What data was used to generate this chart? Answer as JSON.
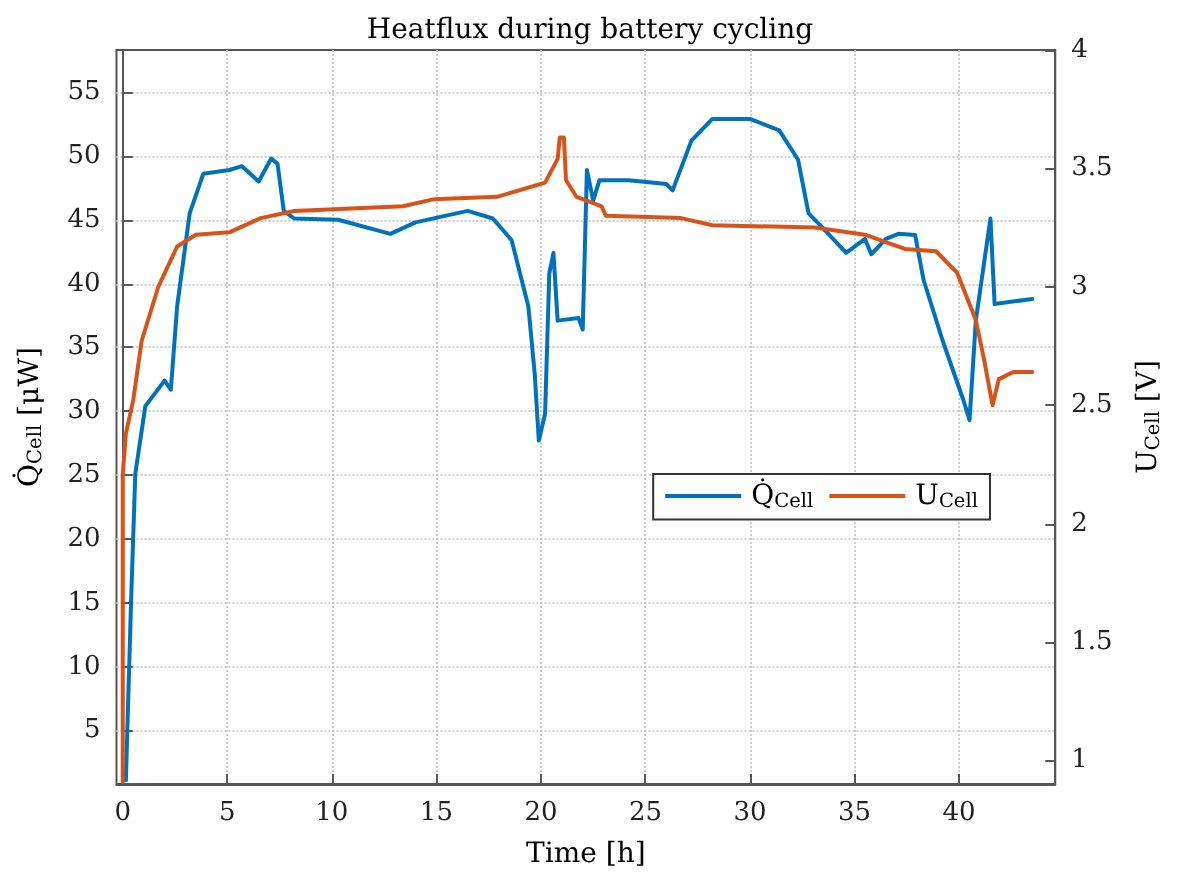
{
  "chart_data": {
    "type": "line",
    "title": "Heatflux during battery cycling",
    "xlabel": "Time [h]",
    "ylabel": "Q̇$_{Cell}$ [μW]",
    "y2label": "U$_{Cell}$ [V]",
    "xlim": [
      -0.3,
      44.6
    ],
    "xticks": [
      0,
      5,
      10,
      15,
      20,
      25,
      30,
      35,
      40
    ],
    "ylim": [
      0.8,
      58.3
    ],
    "yticks": [
      5,
      10,
      15,
      20,
      25,
      30,
      35,
      40,
      45,
      50,
      55
    ],
    "y2lim": [
      0.9,
      4
    ],
    "y2ticks": [
      1,
      1.5,
      2,
      2.5,
      3,
      3.5,
      4
    ],
    "grid": true,
    "legend": "right",
    "marker": "none",
    "line_style": "solid",
    "series": [
      {
        "name": "Q̇$_{Cell}$",
        "color": "#0072bd",
        "x": [
          0.15,
          0.4,
          0.6,
          1.08,
          2.0,
          2.3,
          2.6,
          3.2,
          3.85,
          5.1,
          5.7,
          6.5,
          7.1,
          7.4,
          7.7,
          8.2,
          10.3,
          12.8,
          14.0,
          16.5,
          17.7,
          18.6,
          19.4,
          19.7,
          19.9,
          20.2,
          20.4,
          20.6,
          20.8,
          21.8,
          22.0,
          22.2,
          22.5,
          22.8,
          24.2,
          26.0,
          26.3,
          27.2,
          28.2,
          30.0,
          31.4,
          32.3,
          32.8,
          33.4,
          34.6,
          35.5,
          35.8,
          36.5,
          37.1,
          37.9,
          38.3,
          39.2,
          40.2,
          40.5,
          40.8,
          41.5,
          41.7,
          43.5
        ],
        "values": [
          1.1,
          15.2,
          25.1,
          30.4,
          32.4,
          31.7,
          38.2,
          45.5,
          48.6,
          48.9,
          49.2,
          48,
          49.8,
          49.4,
          45.7,
          45.1,
          45,
          43.9,
          44.8,
          45.7,
          45.1,
          43.4,
          38.2,
          33,
          27.7,
          29.8,
          40.8,
          42.4,
          37.1,
          37.3,
          36.4,
          48.9,
          46.5,
          48.1,
          48.1,
          47.8,
          47.3,
          51.2,
          52.9,
          52.9,
          52,
          49.7,
          45.5,
          44.5,
          42.4,
          43.5,
          42.3,
          43.5,
          43.9,
          43.8,
          40.3,
          35.6,
          30.9,
          29.3,
          37.1,
          45.1,
          38.4,
          38.8
        ]
      },
      {
        "name": "U$_{Cell}$",
        "color": "#d95319",
        "axis": "y2",
        "x": [
          0.0,
          0.0,
          0.15,
          0.5,
          0.9,
          1.7,
          2.6,
          3.5,
          5.1,
          6.6,
          8.2,
          13.4,
          14.9,
          17.9,
          20.2,
          20.8,
          20.9,
          21.1,
          21.2,
          21.7,
          22.6,
          22.9,
          23.1,
          26.7,
          28.2,
          33.1,
          35.5,
          37.4,
          38.9,
          39.9,
          40.8,
          41.2,
          41.6,
          41.9,
          42.6,
          43.5
        ],
        "values": [
          0.91,
          2.21,
          2.38,
          2.52,
          2.77,
          3.0,
          3.17,
          3.22,
          3.23,
          3.29,
          3.32,
          3.34,
          3.37,
          3.38,
          3.44,
          3.54,
          3.63,
          3.63,
          3.45,
          3.38,
          3.35,
          3.34,
          3.3,
          3.29,
          3.26,
          3.25,
          3.22,
          3.16,
          3.15,
          3.06,
          2.86,
          2.69,
          2.5,
          2.61,
          2.64,
          2.64
        ]
      }
    ]
  }
}
